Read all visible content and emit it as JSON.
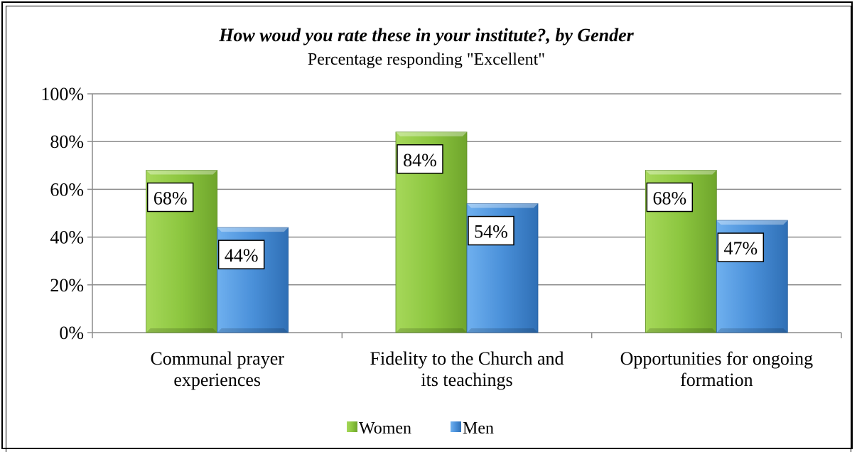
{
  "chart_data": {
    "type": "bar",
    "title": "How woud you rate these in your institute?, by Gender",
    "subtitle": "Percentage responding \"Excellent\"",
    "categories": [
      [
        "Communal prayer",
        "experiences"
      ],
      [
        "Fidelity to the Church and",
        "its teachings"
      ],
      [
        "Opportunities for ongoing",
        "formation"
      ]
    ],
    "series": [
      {
        "name": "Women",
        "values": [
          68,
          84,
          68
        ],
        "labels": [
          "68%",
          "84%",
          "68%"
        ],
        "color": "#8cc63f"
      },
      {
        "name": "Men",
        "values": [
          44,
          54,
          47
        ],
        "labels": [
          "44%",
          "54%",
          "47%"
        ],
        "color": "#4a90d9"
      }
    ],
    "ylim": [
      0,
      100
    ],
    "yticks": [
      "0%",
      "20%",
      "40%",
      "60%",
      "80%",
      "100%"
    ],
    "grid": true,
    "legend_position": "bottom"
  }
}
